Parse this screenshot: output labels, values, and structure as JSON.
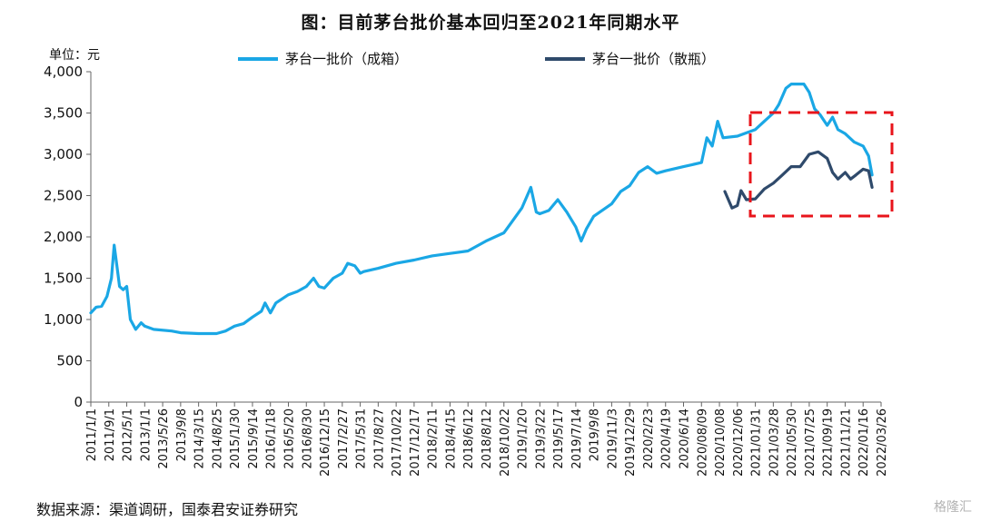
{
  "title": "图：目前茅台批价基本回归至2021年同期水平",
  "unit_label": "单位：元",
  "source": "数据来源：渠道调研，国泰君安证券研究",
  "watermark": "格隆汇",
  "colors": {
    "case": "#1aa7e5",
    "bottle": "#2f4a6b",
    "box": "#e8141b",
    "axis": "#666666"
  },
  "chart_data": {
    "type": "line",
    "title": "图：目前茅台批价基本回归至2021年同期水平",
    "ylabel": "单位：元",
    "ylim": [
      0,
      4000
    ],
    "yticks": [
      0,
      500,
      1000,
      1500,
      2000,
      2500,
      3000,
      3500,
      4000
    ],
    "ytick_labels": [
      "0",
      "500",
      "1,000",
      "1,500",
      "2,000",
      "2,500",
      "3,000",
      "3,500",
      "4,000"
    ],
    "x_tick_labels": [
      "2011/1/1",
      "2011/9/1",
      "2012/5/1",
      "2013/1/1",
      "2013/5/26",
      "2013/9/8",
      "2014/3/15",
      "2014/8/25",
      "2015/1/30",
      "2015/9/14",
      "2016/1/18",
      "2016/5/20",
      "2016/8/30",
      "2016/12/15",
      "2017/2/27",
      "2017/5/31",
      "2017/8/27",
      "2017/10/22",
      "2017/12/17",
      "2018/2/11",
      "2018/4/15",
      "2018/6/12",
      "2018/8/12",
      "2018/10/22",
      "2019/1/20",
      "2019/3/22",
      "2019/5/17",
      "2019/7/14",
      "2019/9/8",
      "2019/11/3",
      "2019/12/29",
      "2020/2/23",
      "2020/4/19",
      "2020/6/14",
      "2020/08/09",
      "2020/10/08",
      "2020/12/06",
      "2021/01/31",
      "2021/03/28",
      "2021/05/30",
      "2021/07/25",
      "2021/09/19",
      "2021/11/21",
      "2022/01/16",
      "2022/03/26"
    ],
    "legend_position": "top",
    "grid": false,
    "series": [
      {
        "name": "茅台一批价（成箱）",
        "values": [
          [
            0,
            1080
          ],
          [
            0.3,
            1150
          ],
          [
            0.6,
            1160
          ],
          [
            0.9,
            1280
          ],
          [
            1.15,
            1500
          ],
          [
            1.3,
            1900
          ],
          [
            1.45,
            1650
          ],
          [
            1.6,
            1400
          ],
          [
            1.8,
            1360
          ],
          [
            2.0,
            1400
          ],
          [
            2.2,
            1000
          ],
          [
            2.5,
            880
          ],
          [
            2.8,
            960
          ],
          [
            3.0,
            920
          ],
          [
            3.5,
            880
          ],
          [
            4.5,
            860
          ],
          [
            5.0,
            840
          ],
          [
            6.0,
            830
          ],
          [
            7.0,
            830
          ],
          [
            7.5,
            860
          ],
          [
            8.0,
            920
          ],
          [
            8.5,
            950
          ],
          [
            9.0,
            1030
          ],
          [
            9.5,
            1100
          ],
          [
            9.7,
            1200
          ],
          [
            10.0,
            1080
          ],
          [
            10.3,
            1200
          ],
          [
            11.0,
            1300
          ],
          [
            11.5,
            1340
          ],
          [
            12.0,
            1400
          ],
          [
            12.4,
            1500
          ],
          [
            12.7,
            1400
          ],
          [
            13.0,
            1380
          ],
          [
            13.5,
            1500
          ],
          [
            14.0,
            1560
          ],
          [
            14.3,
            1680
          ],
          [
            14.7,
            1650
          ],
          [
            15.0,
            1560
          ],
          [
            15.2,
            1580
          ],
          [
            16.0,
            1620
          ],
          [
            17.0,
            1680
          ],
          [
            18.0,
            1720
          ],
          [
            19.0,
            1770
          ],
          [
            20.0,
            1800
          ],
          [
            21.0,
            1830
          ],
          [
            22.0,
            1950
          ],
          [
            23.0,
            2050
          ],
          [
            23.5,
            2200
          ],
          [
            24.0,
            2350
          ],
          [
            24.5,
            2600
          ],
          [
            24.8,
            2300
          ],
          [
            25.0,
            2280
          ],
          [
            25.5,
            2320
          ],
          [
            26.0,
            2450
          ],
          [
            26.5,
            2300
          ],
          [
            27.0,
            2120
          ],
          [
            27.3,
            1950
          ],
          [
            27.6,
            2100
          ],
          [
            28.0,
            2250
          ],
          [
            29.0,
            2400
          ],
          [
            29.5,
            2550
          ],
          [
            30.0,
            2620
          ],
          [
            30.5,
            2780
          ],
          [
            31.0,
            2850
          ],
          [
            31.5,
            2770
          ],
          [
            32.0,
            2800
          ],
          [
            33.0,
            2850
          ],
          [
            34.0,
            2900
          ],
          [
            34.3,
            3200
          ],
          [
            34.6,
            3100
          ],
          [
            34.9,
            3400
          ],
          [
            35.2,
            3200
          ],
          [
            36.0,
            3220
          ],
          [
            37.0,
            3300
          ],
          [
            37.5,
            3400
          ],
          [
            38.0,
            3500
          ],
          [
            38.3,
            3600
          ],
          [
            38.7,
            3800
          ],
          [
            39.0,
            3850
          ],
          [
            39.7,
            3850
          ],
          [
            40.0,
            3750
          ],
          [
            40.3,
            3550
          ],
          [
            40.6,
            3480
          ],
          [
            41.0,
            3350
          ],
          [
            41.3,
            3450
          ],
          [
            41.6,
            3300
          ],
          [
            42.0,
            3250
          ],
          [
            42.5,
            3150
          ],
          [
            43.0,
            3100
          ],
          [
            43.3,
            2980
          ],
          [
            43.5,
            2750
          ]
        ]
      },
      {
        "name": "茅台一批价（散瓶）",
        "values": [
          [
            35.3,
            2550
          ],
          [
            35.7,
            2350
          ],
          [
            36.0,
            2380
          ],
          [
            36.2,
            2560
          ],
          [
            36.5,
            2450
          ],
          [
            37.0,
            2460
          ],
          [
            37.5,
            2580
          ],
          [
            38.0,
            2650
          ],
          [
            38.5,
            2750
          ],
          [
            39.0,
            2850
          ],
          [
            39.5,
            2850
          ],
          [
            40.0,
            3000
          ],
          [
            40.5,
            3030
          ],
          [
            41.0,
            2950
          ],
          [
            41.3,
            2780
          ],
          [
            41.6,
            2700
          ],
          [
            42.0,
            2780
          ],
          [
            42.3,
            2700
          ],
          [
            42.6,
            2750
          ],
          [
            43.0,
            2820
          ],
          [
            43.3,
            2800
          ],
          [
            43.5,
            2600
          ]
        ]
      }
    ],
    "annotations": [
      {
        "type": "highlight-box",
        "style": "dashed",
        "color": "#e8141b"
      }
    ]
  }
}
